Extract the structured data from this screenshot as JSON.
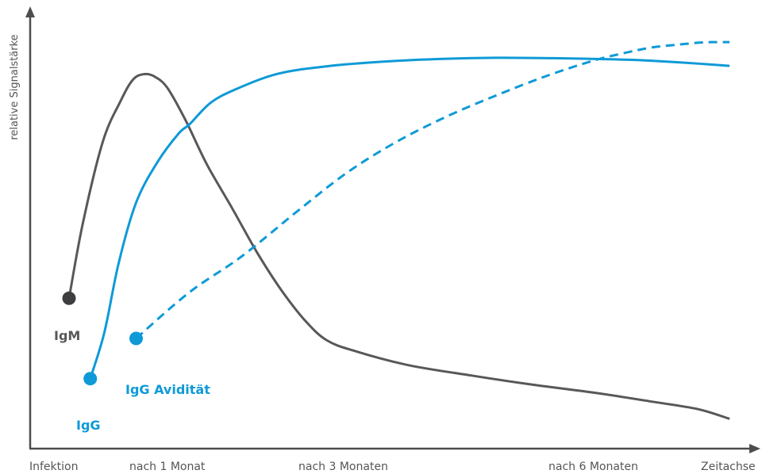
{
  "chart_data": {
    "type": "line",
    "title": "",
    "xlabel": "Zeitachse",
    "ylabel": "relative Signalstärke",
    "x_ticks": [
      "Infektion",
      "nach 1 Monat",
      "nach 3 Monaten",
      "nach 6 Monaten"
    ],
    "xlim": [
      0,
      100
    ],
    "ylim": [
      0,
      100
    ],
    "grid": false,
    "colors": {
      "gray": "#58585a",
      "blue": "#0e9ad7",
      "axis": "#4d4d4d"
    },
    "series": [
      {
        "name": "IgM",
        "color": "#58585a",
        "style": "solid",
        "start_marker": true,
        "x": [
          5.5,
          7.5,
          10.3,
          12.8,
          14.5,
          16,
          17.5,
          19.4,
          22,
          25,
          28.6,
          32.1,
          35.6,
          39,
          42,
          46,
          53.6,
          62.5,
          70.8,
          80,
          88,
          94.6,
          99
        ],
        "y": [
          31,
          51,
          72,
          82.5,
          88,
          89.5,
          89,
          86,
          77.5,
          66,
          54.5,
          43,
          33,
          25,
          20,
          17.2,
          13.5,
          10.8,
          8.5,
          6.3,
          4,
          2,
          -0.5
        ]
      },
      {
        "name": "IgG",
        "color": "#0e9ad7",
        "style": "solid",
        "start_marker": true,
        "x": [
          8.5,
          10.5,
          12.5,
          15,
          18,
          21,
          22.6,
          25.5,
          29,
          35,
          42,
          50,
          58,
          66,
          74,
          80,
          86,
          92,
          99
        ],
        "y": [
          10,
          22,
          40,
          56,
          66.5,
          74,
          76.5,
          82,
          85.5,
          89.6,
          91.6,
          92.8,
          93.5,
          93.8,
          93.7,
          93.5,
          93.2,
          92.6,
          91.7
        ]
      },
      {
        "name": "IgG Avidität",
        "color": "#0e9ad7",
        "style": "dashed",
        "start_marker": true,
        "x": [
          15,
          22.5,
          30,
          38,
          45,
          52,
          59,
          66,
          73,
          79.6,
          84,
          88,
          92,
          95,
          97,
          99
        ],
        "y": [
          20.5,
          32.5,
          42,
          54,
          64,
          72,
          78.5,
          84,
          89,
          93,
          95,
          96.5,
          97.3,
          97.8,
          97.9,
          97.9
        ]
      }
    ]
  }
}
